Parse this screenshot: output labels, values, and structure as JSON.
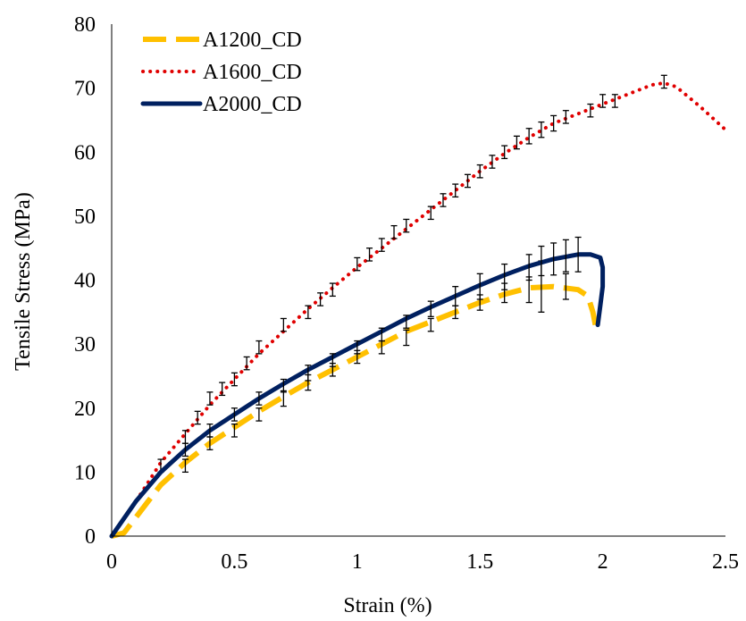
{
  "chart_data": {
    "type": "line",
    "title": "",
    "xlabel": "Strain (%)",
    "ylabel": "Tensile Stress (MPa)",
    "xlim": [
      0,
      2.5
    ],
    "ylim": [
      0,
      80
    ],
    "x_ticks": [
      "0",
      "0.5",
      "1",
      "1.5",
      "2",
      "2.5"
    ],
    "y_ticks": [
      "0",
      "10",
      "20",
      "30",
      "40",
      "50",
      "60",
      "70",
      "80"
    ],
    "grid": false,
    "legend_position": "top-left",
    "series": [
      {
        "name": "A1200_CD",
        "color": "#FFC000",
        "style": "dashed",
        "points": [
          [
            0,
            0
          ],
          [
            0.05,
            0.5
          ],
          [
            0.1,
            3
          ],
          [
            0.15,
            5.5
          ],
          [
            0.2,
            8
          ],
          [
            0.3,
            11.5
          ],
          [
            0.4,
            14.5
          ],
          [
            0.5,
            17
          ],
          [
            0.6,
            19.5
          ],
          [
            0.7,
            21.8
          ],
          [
            0.8,
            24
          ],
          [
            0.9,
            26
          ],
          [
            1.0,
            28
          ],
          [
            1.1,
            30
          ],
          [
            1.2,
            32
          ],
          [
            1.3,
            33.5
          ],
          [
            1.4,
            35
          ],
          [
            1.5,
            36.5
          ],
          [
            1.6,
            37.8
          ],
          [
            1.7,
            38.8
          ],
          [
            1.8,
            39
          ],
          [
            1.9,
            38.5
          ],
          [
            1.94,
            37.5
          ],
          [
            1.96,
            35
          ],
          [
            1.97,
            33
          ]
        ],
        "error_bars": [
          [
            0.3,
            11,
            1
          ],
          [
            0.4,
            14.5,
            1
          ],
          [
            0.5,
            16.5,
            1
          ],
          [
            0.6,
            19,
            1
          ],
          [
            0.7,
            21.5,
            1.2
          ],
          [
            0.8,
            24,
            1.2
          ],
          [
            0.9,
            26,
            1
          ],
          [
            1.0,
            28,
            1
          ],
          [
            1.1,
            29.5,
            1
          ],
          [
            1.2,
            31,
            1.2
          ],
          [
            1.3,
            33,
            1
          ],
          [
            1.4,
            35,
            1
          ],
          [
            1.5,
            36.5,
            1.2
          ],
          [
            1.6,
            38,
            1.5
          ],
          [
            1.7,
            38.5,
            2
          ],
          [
            1.75,
            39,
            4
          ],
          [
            1.85,
            39,
            2
          ]
        ]
      },
      {
        "name": "A1600_CD",
        "color": "#E00000",
        "style": "dotted",
        "points": [
          [
            0,
            0
          ],
          [
            0.1,
            5.5
          ],
          [
            0.2,
            11.5
          ],
          [
            0.3,
            16
          ],
          [
            0.4,
            20.5
          ],
          [
            0.5,
            24.5
          ],
          [
            0.6,
            28.5
          ],
          [
            0.7,
            32
          ],
          [
            0.8,
            35.5
          ],
          [
            0.9,
            38.8
          ],
          [
            1.0,
            42
          ],
          [
            1.1,
            45
          ],
          [
            1.2,
            48
          ],
          [
            1.3,
            51
          ],
          [
            1.4,
            54
          ],
          [
            1.5,
            57
          ],
          [
            1.6,
            59.8
          ],
          [
            1.7,
            62.3
          ],
          [
            1.8,
            64.5
          ],
          [
            1.9,
            66
          ],
          [
            2.0,
            67.5
          ],
          [
            2.1,
            69
          ],
          [
            2.2,
            70.5
          ],
          [
            2.25,
            70.8
          ],
          [
            2.3,
            70.2
          ],
          [
            2.4,
            67
          ],
          [
            2.5,
            63.5
          ]
        ],
        "error_bars": [
          [
            0.2,
            11,
            1
          ],
          [
            0.3,
            15.5,
            1
          ],
          [
            0.35,
            18.5,
            1
          ],
          [
            0.4,
            21.5,
            1
          ],
          [
            0.45,
            23,
            1
          ],
          [
            0.5,
            24.5,
            1
          ],
          [
            0.55,
            27,
            1
          ],
          [
            0.6,
            29.5,
            1
          ],
          [
            0.7,
            33,
            1
          ],
          [
            0.8,
            35,
            1
          ],
          [
            0.85,
            37,
            1
          ],
          [
            0.9,
            38.5,
            1
          ],
          [
            1.0,
            42.5,
            1
          ],
          [
            1.05,
            44,
            1
          ],
          [
            1.1,
            45.5,
            1
          ],
          [
            1.15,
            47.5,
            1
          ],
          [
            1.2,
            48.5,
            1
          ],
          [
            1.3,
            50.5,
            1
          ],
          [
            1.35,
            52.5,
            1
          ],
          [
            1.4,
            54,
            1
          ],
          [
            1.45,
            55.5,
            1
          ],
          [
            1.5,
            57,
            1
          ],
          [
            1.55,
            58.5,
            1
          ],
          [
            1.6,
            60,
            1
          ],
          [
            1.65,
            61.5,
            1
          ],
          [
            1.7,
            62.5,
            1.2
          ],
          [
            1.75,
            63.5,
            1.2
          ],
          [
            1.8,
            64.5,
            1.2
          ],
          [
            1.85,
            65.5,
            1
          ],
          [
            1.95,
            66.5,
            1
          ],
          [
            2.0,
            68,
            1
          ],
          [
            2.05,
            68,
            1
          ],
          [
            2.25,
            71,
            1
          ]
        ]
      },
      {
        "name": "A2000_CD",
        "color": "#002060",
        "style": "solid",
        "points": [
          [
            0,
            0
          ],
          [
            0.1,
            5.5
          ],
          [
            0.2,
            10
          ],
          [
            0.3,
            13.5
          ],
          [
            0.4,
            16.5
          ],
          [
            0.5,
            19
          ],
          [
            0.6,
            21.5
          ],
          [
            0.7,
            23.8
          ],
          [
            0.8,
            26
          ],
          [
            0.9,
            28
          ],
          [
            1.0,
            30
          ],
          [
            1.1,
            32
          ],
          [
            1.2,
            34
          ],
          [
            1.3,
            35.8
          ],
          [
            1.4,
            37.5
          ],
          [
            1.5,
            39.2
          ],
          [
            1.6,
            40.8
          ],
          [
            1.7,
            42.2
          ],
          [
            1.8,
            43.3
          ],
          [
            1.9,
            44
          ],
          [
            1.95,
            44
          ],
          [
            1.99,
            43.5
          ],
          [
            2.0,
            42
          ],
          [
            2.0,
            39
          ],
          [
            1.99,
            36
          ],
          [
            1.98,
            33
          ]
        ],
        "error_bars": [
          [
            0.3,
            13.5,
            1
          ],
          [
            0.4,
            16.5,
            1
          ],
          [
            0.5,
            19,
            1
          ],
          [
            0.6,
            21.5,
            1
          ],
          [
            0.7,
            23.5,
            1
          ],
          [
            0.8,
            25.5,
            1.2
          ],
          [
            0.9,
            27.5,
            1
          ],
          [
            1.0,
            29.5,
            1
          ],
          [
            1.1,
            31.5,
            1
          ],
          [
            1.2,
            33.5,
            1
          ],
          [
            1.3,
            35.5,
            1.2
          ],
          [
            1.4,
            37.5,
            1.5
          ],
          [
            1.5,
            39,
            2
          ],
          [
            1.6,
            40.5,
            2
          ],
          [
            1.7,
            42,
            2
          ],
          [
            1.75,
            43,
            2.3
          ],
          [
            1.8,
            43.3,
            2.5
          ],
          [
            1.85,
            43.8,
            2.5
          ],
          [
            1.9,
            44,
            2.7
          ]
        ]
      }
    ]
  }
}
